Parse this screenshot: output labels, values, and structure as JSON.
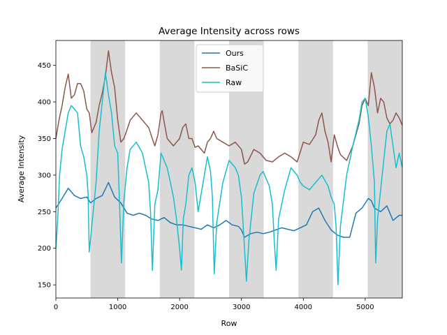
{
  "chart_data": {
    "type": "line",
    "title": "Average Intensity across rows",
    "xlabel": "Row",
    "ylabel": "Average Intensity",
    "xlim": [
      0,
      5600
    ],
    "ylim": [
      132,
      484
    ],
    "xticks": [
      0,
      1000,
      2000,
      3000,
      4000,
      5000
    ],
    "yticks": [
      150,
      200,
      250,
      300,
      350,
      400,
      450
    ],
    "grid": false,
    "legend_position": "top-center",
    "shaded_bands": [
      [
        560,
        1120
      ],
      [
        1680,
        2240
      ],
      [
        2800,
        3360
      ],
      [
        3920,
        4480
      ],
      [
        5040,
        5600
      ]
    ],
    "series": [
      {
        "name": "Ours",
        "color": "#1f77b4",
        "x": [
          0,
          100,
          200,
          300,
          400,
          500,
          560,
          650,
          750,
          850,
          950,
          1050,
          1150,
          1250,
          1350,
          1450,
          1550,
          1650,
          1750,
          1850,
          1950,
          2050,
          2150,
          2250,
          2350,
          2450,
          2550,
          2650,
          2750,
          2850,
          2950,
          3000,
          3050,
          3150,
          3250,
          3350,
          3450,
          3550,
          3650,
          3750,
          3850,
          3950,
          4050,
          4150,
          4250,
          4350,
          4450,
          4550,
          4650,
          4750,
          4850,
          4950,
          5050,
          5100,
          5150,
          5250,
          5350,
          5450,
          5550,
          5600
        ],
        "y": [
          255,
          268,
          282,
          272,
          268,
          270,
          262,
          268,
          272,
          290,
          270,
          262,
          248,
          245,
          248,
          245,
          240,
          238,
          242,
          235,
          232,
          232,
          230,
          228,
          226,
          232,
          228,
          232,
          238,
          232,
          230,
          225,
          215,
          220,
          222,
          220,
          222,
          225,
          228,
          226,
          224,
          228,
          232,
          250,
          255,
          238,
          225,
          218,
          215,
          215,
          248,
          255,
          268,
          265,
          255,
          250,
          258,
          238,
          245,
          245
        ]
      },
      {
        "name": "BaSiC",
        "color": "#8c564b",
        "x": [
          0,
          50,
          100,
          150,
          200,
          250,
          300,
          350,
          400,
          450,
          500,
          540,
          580,
          650,
          700,
          750,
          800,
          850,
          900,
          950,
          1000,
          1050,
          1100,
          1150,
          1200,
          1300,
          1400,
          1500,
          1550,
          1600,
          1650,
          1700,
          1720,
          1760,
          1800,
          1900,
          2000,
          2050,
          2100,
          2150,
          2200,
          2250,
          2300,
          2400,
          2450,
          2500,
          2550,
          2600,
          2700,
          2800,
          2900,
          3000,
          3050,
          3100,
          3200,
          3300,
          3400,
          3500,
          3600,
          3700,
          3800,
          3900,
          4000,
          4100,
          4200,
          4250,
          4300,
          4350,
          4400,
          4450,
          4500,
          4550,
          4600,
          4700,
          4800,
          4900,
          4950,
          5000,
          5050,
          5100,
          5150,
          5200,
          5250,
          5300,
          5350,
          5400,
          5450,
          5500,
          5550,
          5600
        ],
        "y": [
          350,
          375,
          395,
          420,
          438,
          405,
          410,
          425,
          425,
          415,
          390,
          385,
          358,
          372,
          395,
          412,
          435,
          470,
          440,
          420,
          375,
          345,
          350,
          362,
          375,
          385,
          375,
          365,
          352,
          340,
          355,
          385,
          388,
          368,
          350,
          340,
          350,
          365,
          370,
          350,
          350,
          338,
          340,
          330,
          345,
          350,
          360,
          350,
          345,
          340,
          345,
          335,
          315,
          318,
          335,
          330,
          320,
          318,
          325,
          330,
          325,
          318,
          345,
          342,
          355,
          375,
          385,
          360,
          345,
          318,
          355,
          340,
          328,
          320,
          340,
          370,
          395,
          405,
          395,
          440,
          420,
          385,
          405,
          400,
          378,
          370,
          375,
          385,
          378,
          368
        ]
      },
      {
        "name": "Raw",
        "color": "#17becf",
        "x": [
          0,
          30,
          60,
          100,
          150,
          200,
          250,
          300,
          350,
          400,
          450,
          500,
          520,
          540,
          580,
          650,
          700,
          750,
          800,
          850,
          900,
          950,
          1000,
          1030,
          1060,
          1100,
          1150,
          1200,
          1300,
          1400,
          1450,
          1500,
          1530,
          1560,
          1600,
          1650,
          1700,
          1750,
          1800,
          1850,
          1900,
          1950,
          2000,
          2030,
          2060,
          2100,
          2150,
          2200,
          2250,
          2300,
          2400,
          2450,
          2500,
          2530,
          2560,
          2600,
          2700,
          2800,
          2900,
          2950,
          3000,
          3050,
          3080,
          3120,
          3200,
          3300,
          3350,
          3400,
          3450,
          3500,
          3530,
          3560,
          3600,
          3700,
          3800,
          3900,
          3950,
          4000,
          4100,
          4200,
          4300,
          4400,
          4450,
          4500,
          4530,
          4560,
          4600,
          4700,
          4800,
          4900,
          4950,
          5000,
          5050,
          5100,
          5150,
          5170,
          5200,
          5300,
          5350,
          5400,
          5450,
          5500,
          5550,
          5600
        ],
        "y": [
          200,
          240,
          300,
          335,
          360,
          385,
          395,
          390,
          385,
          340,
          325,
          300,
          275,
          195,
          230,
          290,
          360,
          400,
          440,
          410,
          385,
          340,
          330,
          260,
          180,
          265,
          310,
          335,
          345,
          330,
          310,
          290,
          250,
          170,
          260,
          280,
          330,
          320,
          310,
          290,
          270,
          240,
          200,
          170,
          240,
          260,
          300,
          310,
          290,
          250,
          300,
          325,
          305,
          270,
          165,
          235,
          290,
          320,
          310,
          300,
          270,
          200,
          155,
          210,
          275,
          300,
          305,
          295,
          285,
          260,
          210,
          170,
          240,
          280,
          310,
          300,
          290,
          285,
          280,
          290,
          300,
          285,
          270,
          260,
          230,
          150,
          230,
          300,
          340,
          375,
          400,
          405,
          380,
          340,
          290,
          180,
          240,
          320,
          360,
          370,
          340,
          310,
          330,
          310
        ]
      }
    ]
  }
}
